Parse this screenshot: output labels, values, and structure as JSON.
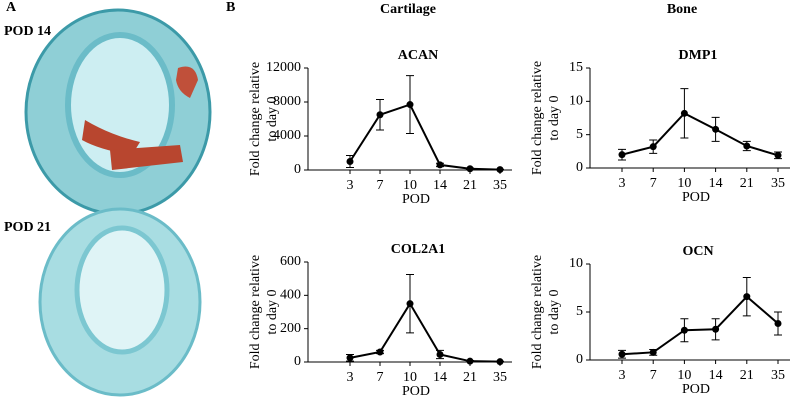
{
  "panel_labels": {
    "a": "A",
    "b": "B"
  },
  "image_labels": [
    "POD 14",
    "POD 21"
  ],
  "column_titles": [
    "Cartilage",
    "Bone"
  ],
  "chart_data": [
    {
      "type": "line",
      "title": "ACAN",
      "xlabel": "POD",
      "ylabel": [
        "Fold change relative",
        "to day 0"
      ],
      "categories": [
        "3",
        "7",
        "10",
        "14",
        "21",
        "35"
      ],
      "values": [
        1000,
        6500,
        7700,
        600,
        150,
        50
      ],
      "errors": [
        700,
        1800,
        3400,
        200,
        80,
        30
      ],
      "color": "#000000",
      "ylim": [
        0,
        12000
      ],
      "yticks": [
        0,
        4000,
        8000,
        12000
      ]
    },
    {
      "type": "line",
      "title": "DMP1",
      "xlabel": "POD",
      "ylabel": [
        "Fold change relative",
        "to day 0"
      ],
      "categories": [
        "3",
        "7",
        "10",
        "14",
        "21",
        "35"
      ],
      "values": [
        2.0,
        3.2,
        8.2,
        5.8,
        3.3,
        1.9
      ],
      "errors": [
        0.8,
        1.0,
        3.7,
        1.8,
        0.7,
        0.5
      ],
      "color": "#000000",
      "ylim": [
        0,
        15
      ],
      "yticks": [
        0,
        5,
        10,
        15
      ]
    },
    {
      "type": "line",
      "title": "COL2A1",
      "xlabel": "POD",
      "ylabel": [
        "Fold change relative",
        "to day 0"
      ],
      "categories": [
        "3",
        "7",
        "10",
        "14",
        "21",
        "35"
      ],
      "values": [
        25,
        60,
        350,
        45,
        5,
        2
      ],
      "errors": [
        20,
        10,
        175,
        25,
        4,
        2
      ],
      "color": "#000000",
      "ylim": [
        0,
        600
      ],
      "yticks": [
        0,
        200,
        400,
        600
      ]
    },
    {
      "type": "line",
      "title": "OCN",
      "xlabel": "POD",
      "ylabel": [
        "Fold change relative",
        "to day 0"
      ],
      "categories": [
        "3",
        "7",
        "10",
        "14",
        "21",
        "35"
      ],
      "values": [
        0.6,
        0.8,
        3.1,
        3.2,
        6.6,
        3.8
      ],
      "errors": [
        0.4,
        0.3,
        1.2,
        1.1,
        2.0,
        1.2
      ],
      "color": "#000000",
      "ylim": [
        0,
        10
      ],
      "yticks": [
        0,
        5,
        10
      ]
    }
  ]
}
